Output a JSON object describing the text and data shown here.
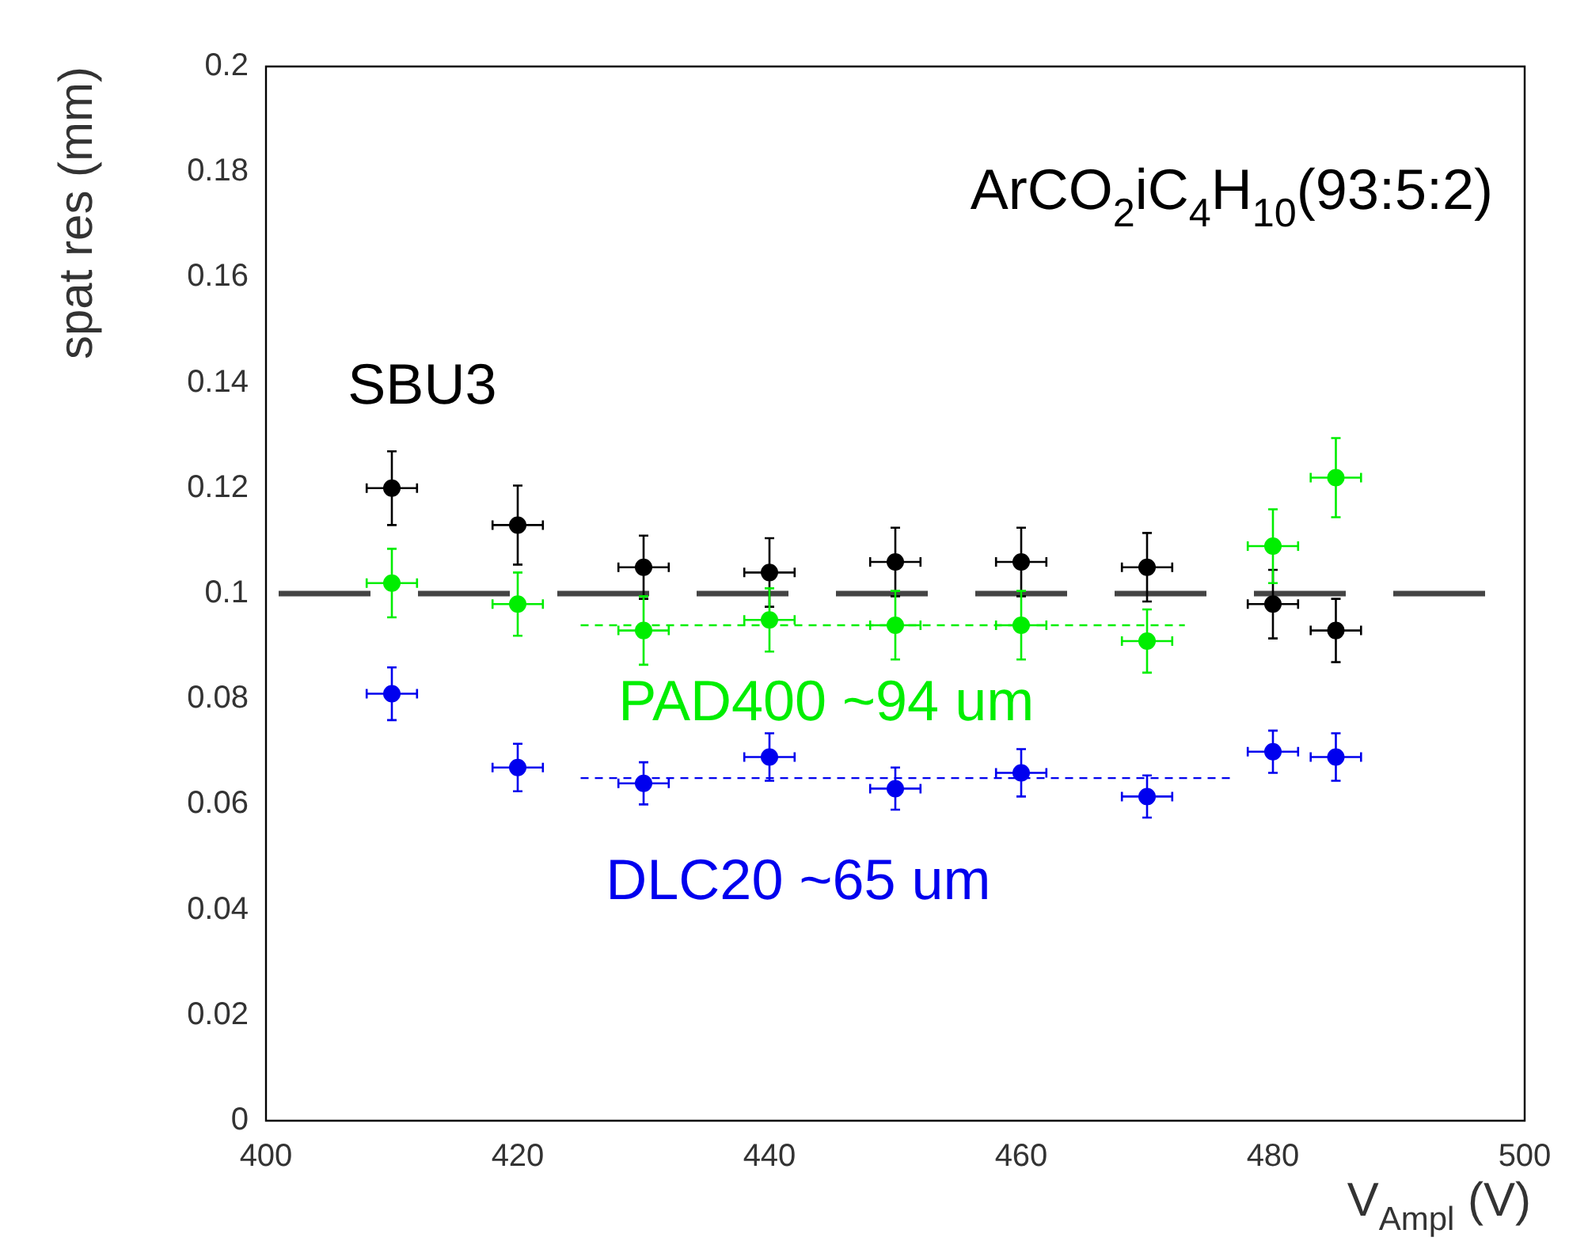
{
  "chart_data": {
    "type": "scatter",
    "xlabel": "V$_{Ampl}$ (V)",
    "ylabel": "spat res (mm)",
    "annotations": [
      "ArCO$_{2}$iC$_{4}$H$_{10}$(93:5:2)"
    ],
    "xlim": [
      400,
      500
    ],
    "xticks": [
      400,
      420,
      440,
      460,
      480,
      500
    ],
    "ylim": [
      0,
      0.2
    ],
    "yticks": [
      0,
      0.02,
      0.04,
      0.06,
      0.08,
      0.1,
      0.12,
      0.14,
      0.16,
      0.18,
      0.2
    ],
    "grid": false,
    "legend": false,
    "marker": "circle",
    "series": [
      {
        "name": "SBU3",
        "color": "#000000",
        "x": [
          410,
          420,
          430,
          440,
          450,
          460,
          470,
          480,
          485
        ],
        "values": [
          0.12,
          0.113,
          0.105,
          0.104,
          0.106,
          0.106,
          0.105,
          0.098,
          0.093
        ],
        "errors": [
          0.007,
          0.0075,
          0.006,
          0.0065,
          0.0065,
          0.0065,
          0.0065,
          0.0065,
          0.006
        ],
        "xerrors": [
          2,
          2,
          2,
          2,
          2,
          2,
          2,
          2,
          2
        ]
      },
      {
        "name": "PAD400 ~94 um",
        "color": "#00ee00",
        "x": [
          410,
          420,
          430,
          440,
          450,
          460,
          470,
          480,
          485
        ],
        "values": [
          0.102,
          0.098,
          0.093,
          0.095,
          0.094,
          0.094,
          0.091,
          0.109,
          0.122
        ],
        "errors": [
          0.0065,
          0.006,
          0.0065,
          0.006,
          0.0065,
          0.0065,
          0.006,
          0.007,
          0.0075
        ],
        "xerrors": [
          2,
          2,
          2,
          2,
          2,
          2,
          2,
          2,
          2
        ]
      },
      {
        "name": "DLC20 ~65 um",
        "color": "#0000ee",
        "x": [
          410,
          420,
          430,
          440,
          450,
          460,
          470,
          480,
          485
        ],
        "values": [
          0.081,
          0.067,
          0.064,
          0.069,
          0.063,
          0.066,
          0.0615,
          0.07,
          0.069
        ],
        "errors": [
          0.005,
          0.0045,
          0.004,
          0.0045,
          0.004,
          0.0045,
          0.004,
          0.004,
          0.0045
        ],
        "xerrors": [
          2,
          2,
          2,
          2,
          2,
          2,
          2,
          2,
          2
        ]
      },
      {
        "type": "line",
        "color": "#00ee00",
        "line_style": "dashed",
        "marker": "none",
        "x": [
          425,
          473
        ],
        "values": [
          0.094,
          0.094
        ]
      },
      {
        "type": "line",
        "color": "#0000ee",
        "line_style": "dashed",
        "marker": "none",
        "x": [
          425,
          477
        ],
        "values": [
          0.065,
          0.065
        ]
      }
    ],
    "ref_lines": [
      {
        "axis": "y",
        "value": 0.1,
        "color": "#444444",
        "line_style": "dashed"
      }
    ]
  }
}
